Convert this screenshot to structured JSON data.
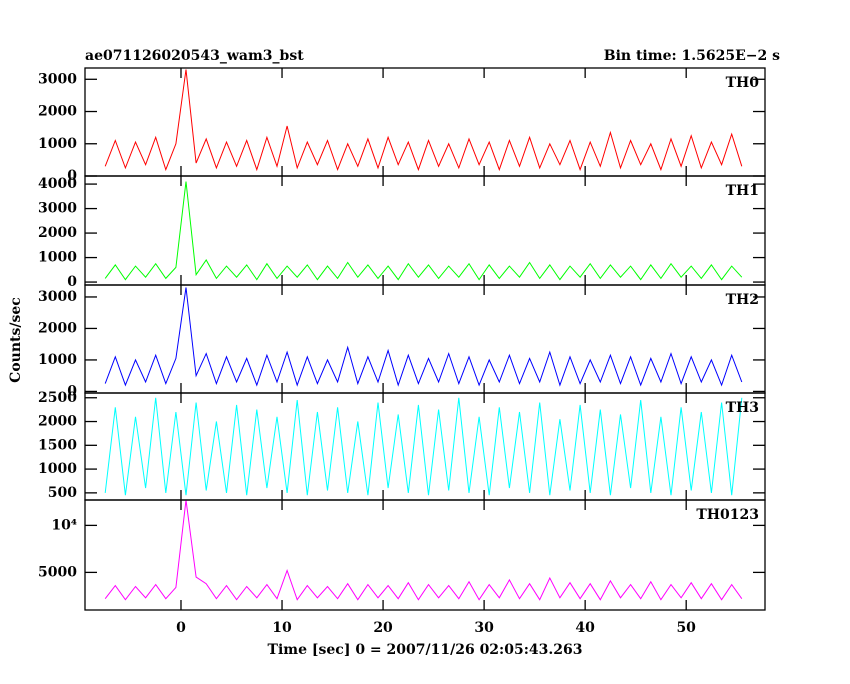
{
  "chart_data": {
    "type": "line",
    "title": "ae071126020543_wam3_bst",
    "subtitle": "Bin time: 1.5625E−2 s",
    "ylabel": "Counts/sec",
    "xlabel": "Time [sec] 0 = 2007/11/26 02:05:43.263",
    "xlim": [
      -9.5,
      57.8
    ],
    "xticks": [
      0,
      10,
      20,
      30,
      40,
      50
    ],
    "x": [
      -7.5,
      -6.5,
      -5.5,
      -4.5,
      -3.5,
      -2.5,
      -1.5,
      -0.5,
      0.5,
      1.5,
      2.5,
      3.5,
      4.5,
      5.5,
      6.5,
      7.5,
      8.5,
      9.5,
      10.5,
      11.5,
      12.5,
      13.5,
      14.5,
      15.5,
      16.5,
      17.5,
      18.5,
      19.5,
      20.5,
      21.5,
      22.5,
      23.5,
      24.5,
      25.5,
      26.5,
      27.5,
      28.5,
      29.5,
      30.5,
      31.5,
      32.5,
      33.5,
      34.5,
      35.5,
      36.5,
      37.5,
      38.5,
      39.5,
      40.5,
      41.5,
      42.5,
      43.5,
      44.5,
      45.5,
      46.5,
      47.5,
      48.5,
      49.5,
      50.5,
      51.5,
      52.5,
      53.5,
      54.5,
      55.5
    ],
    "series": [
      {
        "name": "TH0",
        "color": "#ff0000",
        "ylim": [
          0,
          3350
        ],
        "yticks": [
          0,
          1000,
          2000,
          3000
        ],
        "values": [
          300,
          1100,
          250,
          1050,
          350,
          1200,
          200,
          1000,
          3300,
          400,
          1150,
          250,
          1050,
          300,
          1100,
          200,
          1200,
          300,
          1550,
          250,
          1050,
          350,
          1100,
          200,
          1000,
          300,
          1150,
          250,
          1200,
          350,
          1050,
          200,
          1100,
          300,
          1000,
          250,
          1150,
          350,
          1050,
          200,
          1100,
          300,
          1200,
          250,
          1000,
          350,
          1100,
          200,
          1050,
          300,
          1350,
          250,
          1100,
          350,
          1000,
          200,
          1150,
          300,
          1250,
          250,
          1050,
          350,
          1300,
          300
        ]
      },
      {
        "name": "TH1",
        "color": "#00ff00",
        "ylim": [
          -120,
          4330
        ],
        "yticks": [
          0,
          1000,
          2000,
          3000,
          4000
        ],
        "values": [
          150,
          700,
          100,
          650,
          200,
          750,
          150,
          600,
          4100,
          300,
          900,
          150,
          650,
          200,
          700,
          100,
          750,
          150,
          650,
          200,
          700,
          100,
          650,
          150,
          800,
          200,
          700,
          150,
          650,
          100,
          750,
          200,
          700,
          150,
          650,
          200,
          750,
          100,
          700,
          150,
          650,
          200,
          800,
          150,
          700,
          100,
          650,
          200,
          750,
          150,
          700,
          200,
          650,
          100,
          700,
          150,
          750,
          200,
          650,
          150,
          700,
          100,
          650,
          200
        ]
      },
      {
        "name": "TH2",
        "color": "#0000ff",
        "ylim": [
          -50,
          3380
        ],
        "yticks": [
          0,
          1000,
          2000,
          3000
        ],
        "values": [
          250,
          1100,
          200,
          1000,
          300,
          1150,
          250,
          1050,
          3300,
          500,
          1200,
          250,
          1100,
          300,
          1050,
          200,
          1150,
          300,
          1250,
          200,
          1100,
          250,
          1000,
          300,
          1400,
          250,
          1100,
          300,
          1300,
          200,
          1150,
          250,
          1050,
          300,
          1200,
          250,
          1100,
          200,
          1000,
          300,
          1150,
          250,
          1050,
          300,
          1250,
          200,
          1100,
          250,
          1000,
          300,
          1150,
          250,
          1100,
          200,
          1050,
          300,
          1200,
          250,
          1100,
          300,
          1000,
          200,
          1150,
          300
        ]
      },
      {
        "name": "TH3",
        "color": "#00ffff",
        "ylim": [
          350,
          2600
        ],
        "yticks": [
          500,
          1000,
          1500,
          2000,
          2500
        ],
        "values": [
          500,
          2300,
          450,
          2100,
          600,
          2500,
          500,
          2200,
          450,
          2400,
          550,
          2000,
          500,
          2350,
          450,
          2250,
          600,
          2100,
          500,
          2450,
          450,
          2200,
          550,
          2300,
          500,
          2000,
          450,
          2400,
          600,
          2150,
          500,
          2350,
          450,
          2250,
          550,
          2500,
          500,
          2100,
          450,
          2300,
          600,
          2200,
          500,
          2400,
          450,
          2050,
          550,
          2350,
          500,
          2250,
          450,
          2150,
          600,
          2450,
          500,
          2100,
          450,
          2300,
          550,
          2200,
          500,
          2400,
          450,
          2500
        ]
      },
      {
        "name": "TH0123",
        "color": "#ff00ff",
        "ylim": [
          1000,
          12700
        ],
        "yticks": [
          5000,
          {
            "value": 10000,
            "label": "10⁴"
          }
        ],
        "values": [
          2200,
          3600,
          2100,
          3500,
          2300,
          3700,
          2200,
          3400,
          12700,
          4500,
          3800,
          2200,
          3600,
          2100,
          3500,
          2300,
          3700,
          2200,
          5200,
          2100,
          3600,
          2300,
          3500,
          2200,
          3800,
          2100,
          3700,
          2300,
          3600,
          2200,
          3900,
          2100,
          3700,
          2300,
          3600,
          2200,
          4000,
          2100,
          3700,
          2300,
          4200,
          2200,
          3800,
          2100,
          4400,
          2300,
          3900,
          2200,
          3800,
          2100,
          4100,
          2300,
          3700,
          2200,
          4000,
          2100,
          3700,
          2300,
          3900,
          2200,
          3800,
          2100,
          3700,
          2200
        ]
      }
    ]
  }
}
